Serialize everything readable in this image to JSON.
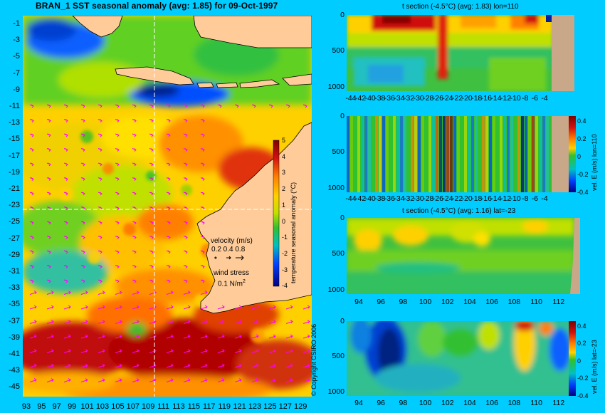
{
  "colors": {
    "background": "#00ccff",
    "land": "#ffcc99",
    "cmap": [
      "#000080",
      "#0040ff",
      "#00c0c0",
      "#30c030",
      "#c0e000",
      "#ffd000",
      "#ff8000",
      "#d01010",
      "#800000"
    ],
    "vectors": "#ff00ff"
  },
  "main_map": {
    "title": "BRAN_1  SST seasonal anomaly (avg: 1.85) for 09-Oct-1997",
    "yticks": [
      "-1",
      "-3",
      "-5",
      "-7",
      "-9",
      "-11",
      "-13",
      "-15",
      "-17",
      "-19",
      "-21",
      "-23",
      "-25",
      "-27",
      "-29",
      "-31",
      "-33",
      "-35",
      "-37",
      "-39",
      "-41",
      "-43",
      "-45"
    ],
    "xticks": [
      "93",
      "95",
      "97",
      "99",
      "101",
      "103",
      "105",
      "107",
      "109",
      "111",
      "113",
      "115",
      "117",
      "119",
      "121",
      "123",
      "125",
      "127",
      "129"
    ],
    "colorbar": {
      "ticks": [
        "5",
        "4",
        "3",
        "2",
        "1",
        "0",
        "-1",
        "-2",
        "-3",
        "-4"
      ],
      "label": "temperature seasonal anomaly (°C)"
    },
    "velocity_legend": {
      "label": "velocity (m/s)",
      "values": "0.2 0.4 0.8"
    },
    "wind_legend": {
      "label": "wind stress",
      "value": "0.1 N/m",
      "exp": "2"
    },
    "copyright": "© Copyright CSIRO 2006"
  },
  "panels": [
    {
      "id": "t-lon",
      "title": "t section (-4.5°C) (avg: 1.83) lon=110",
      "yticks": [
        "0",
        "500",
        "1000"
      ],
      "xticks": [
        "-44",
        "-42",
        "-40",
        "-38",
        "-36",
        "-34",
        "-32",
        "-30",
        "-28",
        "-26",
        "-24",
        "-22",
        "-20",
        "-18",
        "-16",
        "-14",
        "-12",
        "-10",
        "-8",
        "-6",
        "-4"
      ]
    },
    {
      "id": "v-lon",
      "title": "",
      "yticks": [
        "0",
        "500",
        "1000"
      ],
      "xticks": [
        "-44",
        "-42",
        "-40",
        "-38",
        "-36",
        "-34",
        "-32",
        "-30",
        "-28",
        "-26",
        "-24",
        "-22",
        "-20",
        "-18",
        "-16",
        "-14",
        "-12",
        "-10",
        "-8",
        "-6",
        "-4"
      ],
      "colorbar": {
        "ticks": [
          "0.4",
          "0.2",
          "0",
          "-0.2",
          "-0.4"
        ],
        "label": "vel. E (m/s) lon=110"
      }
    },
    {
      "id": "t-lat",
      "title": "t section (-4.5°C) (avg: 1.16) lat=-23",
      "yticks": [
        "0",
        "500",
        "1000"
      ],
      "xticks": [
        "94",
        "96",
        "98",
        "100",
        "102",
        "104",
        "106",
        "108",
        "110",
        "112"
      ]
    },
    {
      "id": "v-lat",
      "title": "",
      "yticks": [
        "0",
        "500",
        "1000"
      ],
      "xticks": [
        "94",
        "96",
        "98",
        "100",
        "102",
        "104",
        "106",
        "108",
        "110",
        "112"
      ],
      "colorbar": {
        "ticks": [
          "0.4",
          "0.2",
          "0",
          "-0.2",
          "-0.4"
        ],
        "label": "vel. E (m/s) lat=-23"
      }
    }
  ],
  "chart_data": [
    {
      "type": "heatmap",
      "title": "BRAN_1  SST seasonal anomaly (avg: 1.85) for 09-Oct-1997",
      "xlim": [
        92.5,
        129.5
      ],
      "ylim": [
        -45,
        0
      ],
      "colorbar_range": [
        -4,
        5
      ],
      "colorbar_label": "temperature seasonal anomaly (°C)",
      "avg": 1.85,
      "date": "09-Oct-1997",
      "sections_marked": {
        "lon": 110,
        "lat": -23
      }
    },
    {
      "type": "heatmap",
      "title": "t section (-4.5°C) (avg: 1.83) lon=110",
      "xlim": [
        -45,
        -3
      ],
      "ylim": [
        1050,
        0
      ],
      "avg": 1.83
    },
    {
      "type": "heatmap",
      "colorbar_label": "vel. E (m/s) lon=110",
      "xlim": [
        -45,
        -3
      ],
      "ylim": [
        1050,
        0
      ],
      "colorbar_range": [
        -0.4,
        0.4
      ]
    },
    {
      "type": "heatmap",
      "title": "t section (-4.5°C) (avg: 1.16) lat=-23",
      "xlim": [
        93,
        114
      ],
      "ylim": [
        1050,
        0
      ],
      "avg": 1.16
    },
    {
      "type": "heatmap",
      "colorbar_label": "vel. E (m/s) lat=-23",
      "xlim": [
        93,
        114
      ],
      "ylim": [
        1050,
        0
      ],
      "colorbar_range": [
        -0.4,
        0.4
      ]
    }
  ]
}
